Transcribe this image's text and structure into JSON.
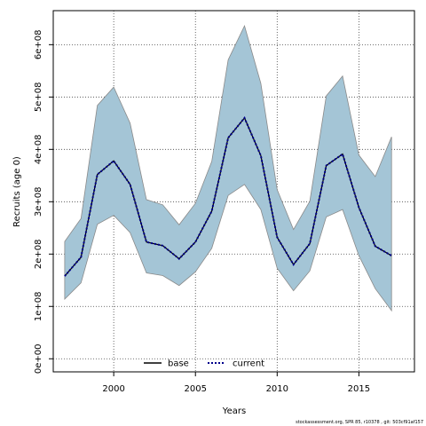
{
  "chart_data": {
    "type": "area",
    "xlabel": "Years",
    "ylabel": "Recruits (age 0)",
    "xlim": [
      1996.3,
      2018.4
    ],
    "ylim": [
      -25000000.0,
      665000000.0
    ],
    "x_ticks": [
      2000,
      2005,
      2010,
      2015
    ],
    "x_tick_labels": [
      "2000",
      "2005",
      "2010",
      "2015"
    ],
    "y_ticks": [
      0,
      100000000,
      200000000,
      300000000,
      400000000,
      500000000,
      600000000
    ],
    "y_tick_labels": [
      "0e+00",
      "1e+08",
      "2e+08",
      "3e+08",
      "4e+08",
      "5e+08",
      "6e+08"
    ],
    "grid": true,
    "legend_position": "bottom-center",
    "x": [
      1997,
      1998,
      1999,
      2000,
      2001,
      2002,
      2003,
      2004,
      2005,
      2006,
      2007,
      2008,
      2009,
      2010,
      2011,
      2012,
      2013,
      2014,
      2015,
      2016,
      2017
    ],
    "series": [
      {
        "name": "base",
        "style": "solid",
        "color": "#000000",
        "values": [
          158000000,
          194000000,
          352000000,
          378000000,
          333000000,
          223000000,
          216000000,
          191000000,
          223000000,
          282000000,
          422000000,
          460000000,
          388000000,
          232000000,
          180000000,
          220000000,
          369000000,
          391000000,
          289000000,
          215000000,
          197000000
        ]
      },
      {
        "name": "current",
        "style": "dotted",
        "color": "#00008B",
        "values": [
          158000000,
          194000000,
          352000000,
          378000000,
          333000000,
          223000000,
          216000000,
          191000000,
          223000000,
          282000000,
          422000000,
          460000000,
          388000000,
          232000000,
          180000000,
          220000000,
          369000000,
          391000000,
          289000000,
          215000000,
          197000000
        ]
      }
    ],
    "band": {
      "fill": "#A4C5D6",
      "stroke": "#8a8a8a",
      "upper": [
        224000000,
        268000000,
        484000000,
        519000000,
        450000000,
        304000000,
        294000000,
        256000000,
        297000000,
        377000000,
        571000000,
        636000000,
        526000000,
        323000000,
        247000000,
        301000000,
        502000000,
        540000000,
        389000000,
        348000000,
        424000000
      ],
      "lower": [
        114000000,
        145000000,
        257000000,
        274000000,
        241000000,
        164000000,
        159000000,
        140000000,
        166000000,
        211000000,
        312000000,
        333000000,
        285000000,
        173000000,
        130000000,
        168000000,
        271000000,
        285000000,
        197000000,
        134000000,
        92000000
      ]
    }
  },
  "footer": "stockassessment.org, SPR 85, r10378 , git: 503cf91af157"
}
